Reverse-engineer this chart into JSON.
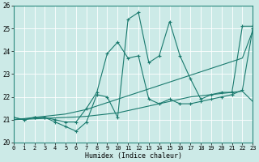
{
  "title": "",
  "xlabel": "Humidex (Indice chaleur)",
  "xlim": [
    0,
    23
  ],
  "ylim": [
    20,
    26
  ],
  "yticks": [
    20,
    21,
    22,
    23,
    24,
    25,
    26
  ],
  "xticks": [
    0,
    1,
    2,
    3,
    4,
    5,
    6,
    7,
    8,
    9,
    10,
    11,
    12,
    13,
    14,
    15,
    16,
    17,
    18,
    19,
    20,
    21,
    22,
    23
  ],
  "bg_color": "#cceae7",
  "grid_color": "#b0d8d4",
  "line_color": "#1a7a6e",
  "series1_x": [
    0,
    1,
    2,
    3,
    4,
    5,
    6,
    7,
    8,
    9,
    10,
    11,
    12,
    13,
    14,
    15,
    16,
    17,
    18,
    19,
    20,
    21,
    22,
    23
  ],
  "series1_y": [
    21.1,
    21.0,
    21.1,
    21.1,
    20.9,
    20.7,
    20.5,
    20.9,
    22.1,
    22.0,
    21.1,
    25.4,
    25.7,
    23.5,
    23.8,
    25.3,
    23.8,
    22.8,
    21.9,
    22.1,
    22.2,
    22.2,
    25.1,
    25.1
  ],
  "series2_x": [
    0,
    1,
    2,
    3,
    4,
    5,
    6,
    7,
    8,
    9,
    10,
    11,
    12,
    13,
    14,
    15,
    16,
    17,
    18,
    19,
    20,
    21,
    22,
    23
  ],
  "series2_y": [
    21.1,
    21.0,
    21.1,
    21.1,
    21.0,
    20.9,
    20.9,
    21.5,
    22.2,
    23.9,
    24.4,
    23.7,
    23.8,
    21.9,
    21.7,
    21.9,
    21.7,
    21.7,
    21.8,
    21.9,
    22.0,
    22.1,
    22.3,
    25.0
  ],
  "series3_x": [
    0,
    1,
    2,
    3,
    4,
    5,
    6,
    7,
    8,
    9,
    10,
    11,
    12,
    13,
    14,
    15,
    16,
    17,
    18,
    19,
    20,
    21,
    22,
    23
  ],
  "series3_y": [
    21.0,
    21.05,
    21.1,
    21.15,
    21.2,
    21.25,
    21.35,
    21.45,
    21.6,
    21.75,
    21.9,
    22.05,
    22.2,
    22.35,
    22.5,
    22.65,
    22.8,
    22.95,
    23.1,
    23.25,
    23.4,
    23.55,
    23.7,
    24.9
  ],
  "series4_x": [
    0,
    1,
    2,
    3,
    4,
    5,
    6,
    7,
    8,
    9,
    10,
    11,
    12,
    13,
    14,
    15,
    16,
    17,
    18,
    19,
    20,
    21,
    22,
    23
  ],
  "series4_y": [
    21.0,
    21.02,
    21.04,
    21.06,
    21.08,
    21.1,
    21.12,
    21.15,
    21.2,
    21.25,
    21.3,
    21.4,
    21.5,
    21.6,
    21.7,
    21.8,
    21.9,
    22.0,
    22.05,
    22.1,
    22.15,
    22.2,
    22.25,
    21.8
  ]
}
